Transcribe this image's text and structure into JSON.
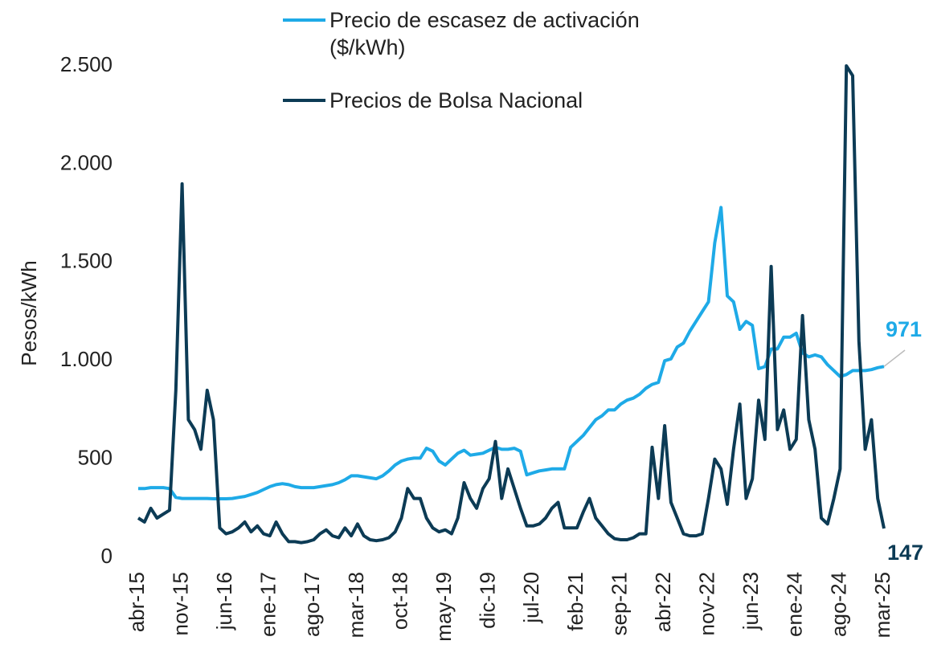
{
  "chart_data": {
    "type": "line",
    "y_label": "Pesos/kWh",
    "categories": [
      "abr-15",
      null,
      null,
      null,
      null,
      null,
      null,
      "nov-15",
      null,
      null,
      null,
      null,
      null,
      null,
      "jun-16",
      null,
      null,
      null,
      null,
      null,
      null,
      "ene-17",
      null,
      null,
      null,
      null,
      null,
      null,
      "ago-17",
      null,
      null,
      null,
      null,
      null,
      null,
      "mar-18",
      null,
      null,
      null,
      null,
      null,
      null,
      "oct-18",
      null,
      null,
      null,
      null,
      null,
      null,
      "may-19",
      null,
      null,
      null,
      null,
      null,
      null,
      "dic-19",
      null,
      null,
      null,
      null,
      null,
      null,
      "jul-20",
      null,
      null,
      null,
      null,
      null,
      null,
      "feb-21",
      null,
      null,
      null,
      null,
      null,
      null,
      "sep-21",
      null,
      null,
      null,
      null,
      null,
      null,
      "abr-22",
      null,
      null,
      null,
      null,
      null,
      null,
      "nov-22",
      null,
      null,
      null,
      null,
      null,
      null,
      "jun-23",
      null,
      null,
      null,
      null,
      null,
      null,
      "ene-24",
      null,
      null,
      null,
      null,
      null,
      null,
      "ago-24",
      null,
      null,
      null,
      null,
      null,
      null,
      "mar-25"
    ],
    "series": [
      {
        "name": "Precio de escasez de activación ($/kWh)",
        "color": "#1eaae7",
        "values": [
          350,
          350,
          355,
          355,
          355,
          350,
          305,
          300,
          300,
          300,
          300,
          300,
          298,
          298,
          298,
          300,
          305,
          310,
          320,
          330,
          345,
          360,
          370,
          375,
          370,
          360,
          355,
          355,
          355,
          360,
          365,
          370,
          380,
          395,
          415,
          415,
          410,
          405,
          400,
          415,
          440,
          470,
          490,
          500,
          505,
          505,
          555,
          540,
          490,
          470,
          500,
          530,
          545,
          520,
          525,
          530,
          545,
          560,
          550,
          550,
          555,
          540,
          420,
          430,
          440,
          445,
          450,
          450,
          450,
          560,
          590,
          620,
          660,
          700,
          720,
          750,
          750,
          780,
          800,
          810,
          830,
          860,
          880,
          890,
          1000,
          1010,
          1070,
          1090,
          1150,
          1200,
          1250,
          1300,
          1600,
          1780,
          1330,
          1300,
          1160,
          1200,
          1180,
          960,
          970,
          1060,
          1060,
          1120,
          1120,
          1140,
          1040,
          1020,
          1030,
          1020,
          980,
          950,
          920,
          930,
          950,
          950,
          950,
          955,
          965,
          971
        ]
      },
      {
        "name": "Precios de Bolsa Nacional",
        "color": "#0c3b55",
        "values": [
          200,
          180,
          250,
          200,
          220,
          240,
          850,
          1900,
          700,
          650,
          550,
          850,
          700,
          150,
          120,
          130,
          150,
          180,
          130,
          160,
          120,
          110,
          180,
          120,
          80,
          80,
          75,
          80,
          90,
          120,
          140,
          110,
          100,
          150,
          110,
          170,
          110,
          90,
          85,
          90,
          100,
          130,
          200,
          350,
          300,
          300,
          200,
          150,
          130,
          140,
          120,
          200,
          380,
          300,
          250,
          350,
          400,
          590,
          300,
          450,
          350,
          250,
          160,
          160,
          170,
          200,
          250,
          280,
          150,
          150,
          150,
          230,
          300,
          200,
          160,
          120,
          95,
          90,
          90,
          100,
          120,
          120,
          560,
          300,
          670,
          280,
          200,
          120,
          110,
          110,
          120,
          300,
          500,
          450,
          270,
          550,
          780,
          300,
          400,
          800,
          600,
          1480,
          650,
          750,
          550,
          600,
          1230,
          700,
          550,
          200,
          170,
          300,
          450,
          2500,
          2450,
          1100,
          550,
          700,
          300,
          147
        ]
      }
    ],
    "ylim": [
      0,
      2500
    ],
    "yticks": [
      0,
      500,
      {
        "value": 1000,
        "label": "1.000"
      },
      {
        "value": 1500,
        "label": "1.500"
      },
      {
        "value": 2000,
        "label": "2.000"
      },
      {
        "value": 2500,
        "label": "2.500"
      }
    ],
    "grid": false
  }
}
